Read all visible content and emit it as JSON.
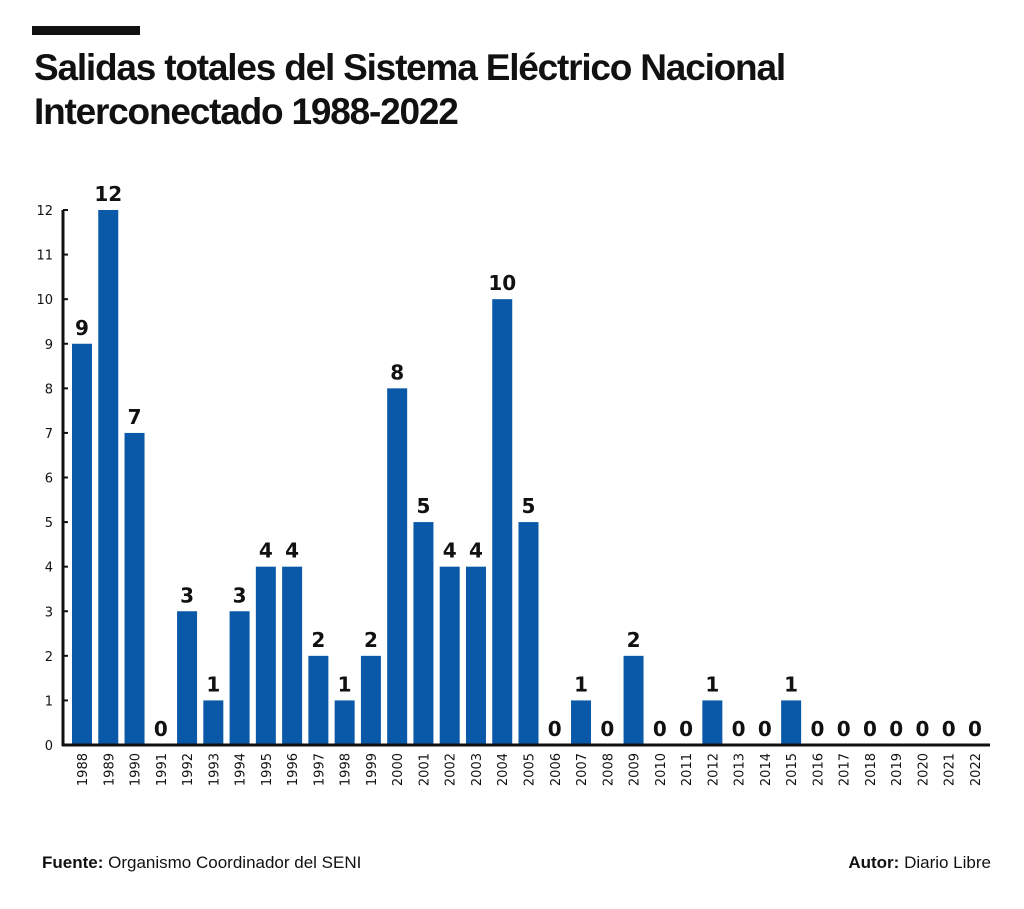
{
  "header": {
    "title_line1": "Salidas totales del Sistema Eléctrico Nacional",
    "title_line2": "Interconectado 1988-2022"
  },
  "footer": {
    "source_label": "Fuente:",
    "source_value": "Organismo Coordinador del SENI",
    "author_label": "Autor:",
    "author_value": "Diario Libre"
  },
  "colors": {
    "bar": "#0a58a8",
    "axis": "#111111",
    "text": "#111111"
  },
  "chart_data": {
    "type": "bar",
    "title": "Salidas totales del Sistema Eléctrico Nacional Interconectado 1988-2022",
    "xlabel": "",
    "ylabel": "",
    "ylim": [
      0,
      12
    ],
    "yticks": [
      0,
      1,
      2,
      3,
      4,
      5,
      6,
      7,
      8,
      9,
      10,
      11,
      12
    ],
    "grid": false,
    "legend": "none",
    "categories": [
      "1988",
      "1989",
      "1990",
      "1991",
      "1992",
      "1993",
      "1994",
      "1995",
      "1996",
      "1997",
      "1998",
      "1999",
      "2000",
      "2001",
      "2002",
      "2003",
      "2004",
      "2005",
      "2006",
      "2007",
      "2008",
      "2009",
      "2010",
      "2011",
      "2012",
      "2013",
      "2014",
      "2015",
      "2016",
      "2017",
      "2018",
      "2019",
      "2020",
      "2021",
      "2022"
    ],
    "values": [
      9,
      12,
      7,
      0,
      3,
      1,
      3,
      4,
      4,
      2,
      1,
      2,
      8,
      5,
      4,
      4,
      10,
      5,
      0,
      1,
      0,
      2,
      0,
      0,
      1,
      0,
      0,
      1,
      0,
      0,
      0,
      0,
      0,
      0,
      0
    ]
  }
}
